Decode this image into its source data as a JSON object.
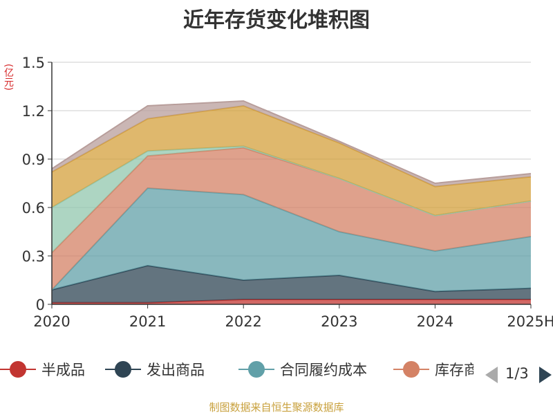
{
  "chart_data": {
    "type": "area",
    "stacked": true,
    "title": "近年存货变化堆积图",
    "ylabel": "(亿元)",
    "categories": [
      "2020",
      "2021",
      "2022",
      "2023",
      "2024",
      "2025H"
    ],
    "ylim": [
      0,
      1.5
    ],
    "yticks": [
      "0",
      "0.3",
      "0.6",
      "0.9",
      "1.2",
      "1.5"
    ],
    "grid": true,
    "series": [
      {
        "name": "半成品",
        "color": "#c23531",
        "values": [
          0.01,
          0.01,
          0.03,
          0.03,
          0.03,
          0.03
        ]
      },
      {
        "name": "发出商品",
        "color": "#2f4554",
        "values": [
          0.08,
          0.23,
          0.12,
          0.15,
          0.05,
          0.07
        ]
      },
      {
        "name": "合同履约成本",
        "color": "#61a0a8",
        "values": [
          0.0,
          0.48,
          0.53,
          0.27,
          0.25,
          0.32
        ]
      },
      {
        "name": "库存商品",
        "color": "#d48265",
        "values": [
          0.23,
          0.2,
          0.29,
          0.33,
          0.22,
          0.22
        ]
      },
      {
        "color": "#91c7ae",
        "values": [
          0.28,
          0.03,
          0.01,
          0.0,
          0.0,
          0.0
        ]
      },
      {
        "color": "#d4a03c",
        "values": [
          0.22,
          0.2,
          0.25,
          0.22,
          0.18,
          0.15
        ]
      },
      {
        "color": "#b89e9b",
        "values": [
          0.02,
          0.08,
          0.03,
          0.01,
          0.02,
          0.02
        ]
      }
    ],
    "legend_placement": "bottom"
  },
  "legend": {
    "page_text": "1/3"
  },
  "footer": {
    "source": "制图数据来自恒生聚源数据库"
  }
}
